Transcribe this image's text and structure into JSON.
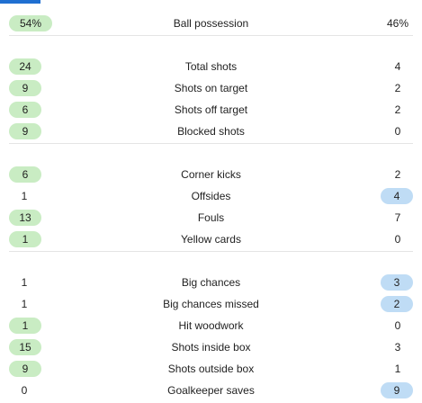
{
  "colors": {
    "accent": "#1f6fd1",
    "home_highlight": "#c9ecc3",
    "away_highlight": "#bfdcf5"
  },
  "stats": [
    {
      "label": "Ball possession",
      "home": "54%",
      "away": "46%",
      "leader": "home"
    },
    {
      "label": "Total shots",
      "home": "24",
      "away": "4",
      "leader": "home"
    },
    {
      "label": "Shots on target",
      "home": "9",
      "away": "2",
      "leader": "home"
    },
    {
      "label": "Shots off target",
      "home": "6",
      "away": "2",
      "leader": "home"
    },
    {
      "label": "Blocked shots",
      "home": "9",
      "away": "0",
      "leader": "home"
    },
    {
      "label": "Corner kicks",
      "home": "6",
      "away": "2",
      "leader": "home"
    },
    {
      "label": "Offsides",
      "home": "1",
      "away": "4",
      "leader": "away"
    },
    {
      "label": "Fouls",
      "home": "13",
      "away": "7",
      "leader": "home"
    },
    {
      "label": "Yellow cards",
      "home": "1",
      "away": "0",
      "leader": "home"
    },
    {
      "label": "Big chances",
      "home": "1",
      "away": "3",
      "leader": "away"
    },
    {
      "label": "Big chances missed",
      "home": "1",
      "away": "2",
      "leader": "away"
    },
    {
      "label": "Hit woodwork",
      "home": "1",
      "away": "0",
      "leader": "home"
    },
    {
      "label": "Shots inside box",
      "home": "15",
      "away": "3",
      "leader": "home"
    },
    {
      "label": "Shots outside box",
      "home": "9",
      "away": "1",
      "leader": "home"
    },
    {
      "label": "Goalkeeper saves",
      "home": "0",
      "away": "9",
      "leader": "away"
    }
  ]
}
